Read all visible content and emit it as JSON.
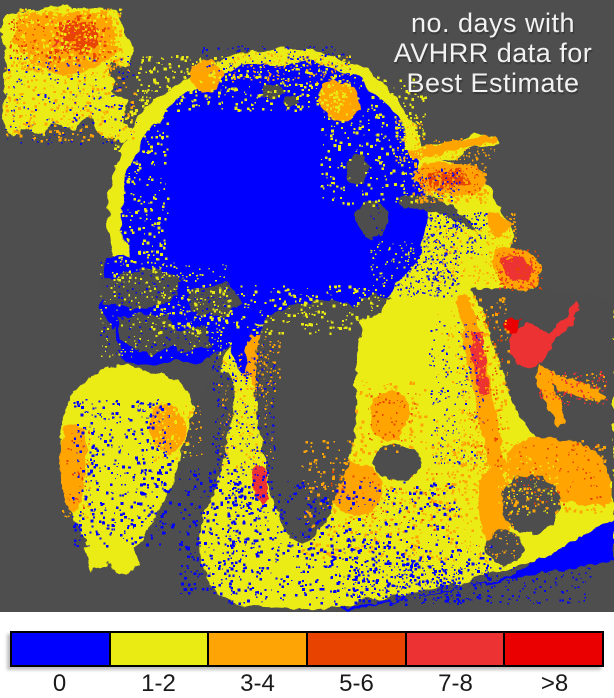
{
  "title": {
    "lines": [
      "no. days with",
      "AVHRR data for",
      "Best Estimate"
    ]
  },
  "palette": {
    "background": "#4e4e4e",
    "land": "#4e4e4e",
    "blue": "#0000ff",
    "yellow": "#ebeb14",
    "orange": "#ffa405",
    "orange_red": "#e84400",
    "red": "#ec3232",
    "bright_red": "#ea0000"
  },
  "legend": {
    "categories": [
      {
        "label": "0",
        "color": "#0000ff"
      },
      {
        "label": "1-2",
        "color": "#ebeb14"
      },
      {
        "label": "3-4",
        "color": "#ffa405"
      },
      {
        "label": "5-6",
        "color": "#e84400"
      },
      {
        "label": "7-8",
        "color": "#ec3232"
      },
      {
        "label": ">8",
        "color": "#ea0000"
      }
    ]
  },
  "chart_data": {
    "type": "heatmap",
    "title": "no. days with AVHRR data for Best Estimate",
    "legend_position": "bottom",
    "categories": [
      "0",
      "1-2",
      "3-4",
      "5-6",
      "7-8",
      ">8"
    ],
    "category_colors": [
      "#0000ff",
      "#ebeb14",
      "#ffa405",
      "#e84400",
      "#ec3232",
      "#ea0000"
    ],
    "description_visible_regions": "central polar ocean = 0 days (blue); surrounding seas 1-8+ days (yellow to red); land/no-data = gray"
  }
}
